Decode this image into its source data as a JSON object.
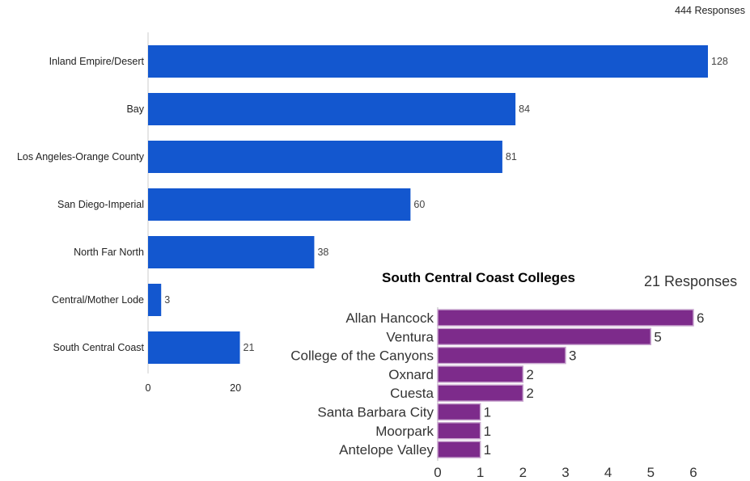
{
  "colors": {
    "main_bar": "#1357cf",
    "inset_bar": "#7d2b8b",
    "inset_bar_border": "#c9a7cf",
    "axis": "#cccccc"
  },
  "main_responses": "444 Responses",
  "inset_title": "South Central Coast Colleges",
  "inset_responses": "21 Responses",
  "chart_data": [
    {
      "type": "bar",
      "orientation": "horizontal",
      "categories": [
        "Inland Empire/Desert",
        "Bay",
        "Los Angeles-Orange County",
        "San Diego-Imperial",
        "North Far North",
        "Central/Mother Lode",
        "South Central Coast"
      ],
      "values": [
        128,
        84,
        81,
        60,
        38,
        3,
        21
      ],
      "value_labels": [
        "128",
        "84",
        "81",
        "60",
        "38",
        "3",
        "21"
      ],
      "x_ticks": [
        "0",
        "20"
      ],
      "xlim": [
        0,
        128
      ]
    },
    {
      "type": "bar",
      "orientation": "horizontal",
      "title": "South Central Coast Colleges",
      "categories": [
        "Allan Hancock",
        "Ventura",
        "College of the Canyons",
        "Oxnard",
        "Cuesta",
        "Santa Barbara City",
        "Moorpark",
        "Antelope Valley"
      ],
      "values": [
        6,
        5,
        3,
        2,
        2,
        1,
        1,
        1
      ],
      "value_labels": [
        "6",
        "5",
        "3",
        "2",
        "2",
        "1",
        "1",
        "1"
      ],
      "x_ticks": [
        "0",
        "1",
        "2",
        "3",
        "4",
        "5",
        "6"
      ],
      "xlim": [
        0,
        6
      ]
    }
  ]
}
